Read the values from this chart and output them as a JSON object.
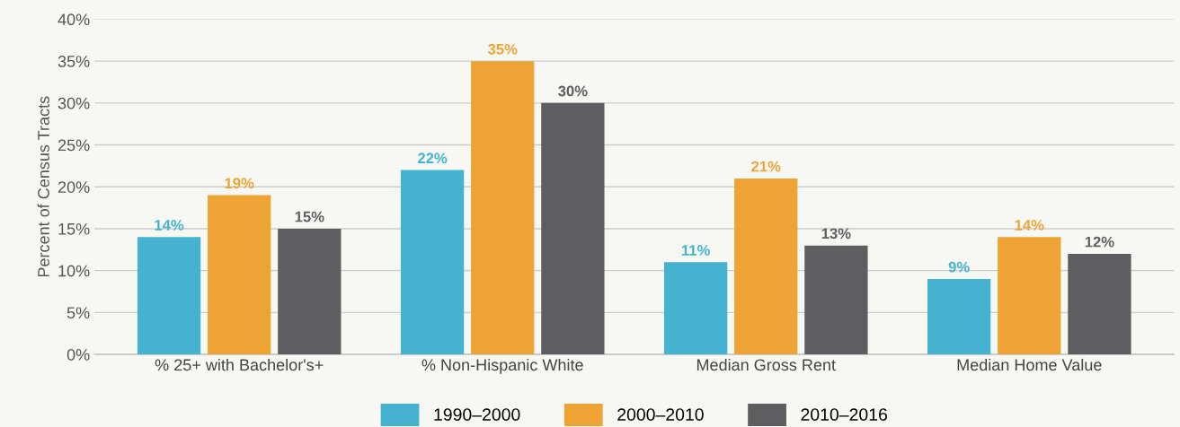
{
  "chart_data": {
    "type": "bar",
    "ylabel": "Percent of Census Tracts",
    "categories": [
      "% 25+ with Bachelor's+",
      "% Non-Hispanic White",
      "Median Gross Rent",
      "Median Home Value"
    ],
    "series": [
      {
        "name": "1990–2000",
        "color": "#45b3cf",
        "values": [
          14,
          22,
          11,
          9
        ],
        "value_labels": [
          "14%",
          "22%",
          "11%",
          "9%"
        ]
      },
      {
        "name": "2000–2010",
        "color": "#eda435",
        "values": [
          19,
          35,
          21,
          14
        ],
        "value_labels": [
          "19%",
          "35%",
          "21%",
          "14%"
        ]
      },
      {
        "name": "2010–2016",
        "color": "#5e5e60",
        "values": [
          15,
          30,
          13,
          12
        ],
        "value_labels": [
          "15%",
          "30%",
          "13%",
          "12%"
        ]
      }
    ],
    "ylim": [
      0,
      40
    ],
    "yticks": [
      {
        "value": 0,
        "label": "0%"
      },
      {
        "value": 5,
        "label": "5%"
      },
      {
        "value": 10,
        "label": "10%"
      },
      {
        "value": 15,
        "label": "15%"
      },
      {
        "value": 20,
        "label": "20%"
      },
      {
        "value": 25,
        "label": "25%"
      },
      {
        "value": 30,
        "label": "30%"
      },
      {
        "value": 35,
        "label": "35%"
      },
      {
        "value": 40,
        "label": "40%"
      }
    ],
    "grid": "y",
    "legend": "bottom"
  }
}
